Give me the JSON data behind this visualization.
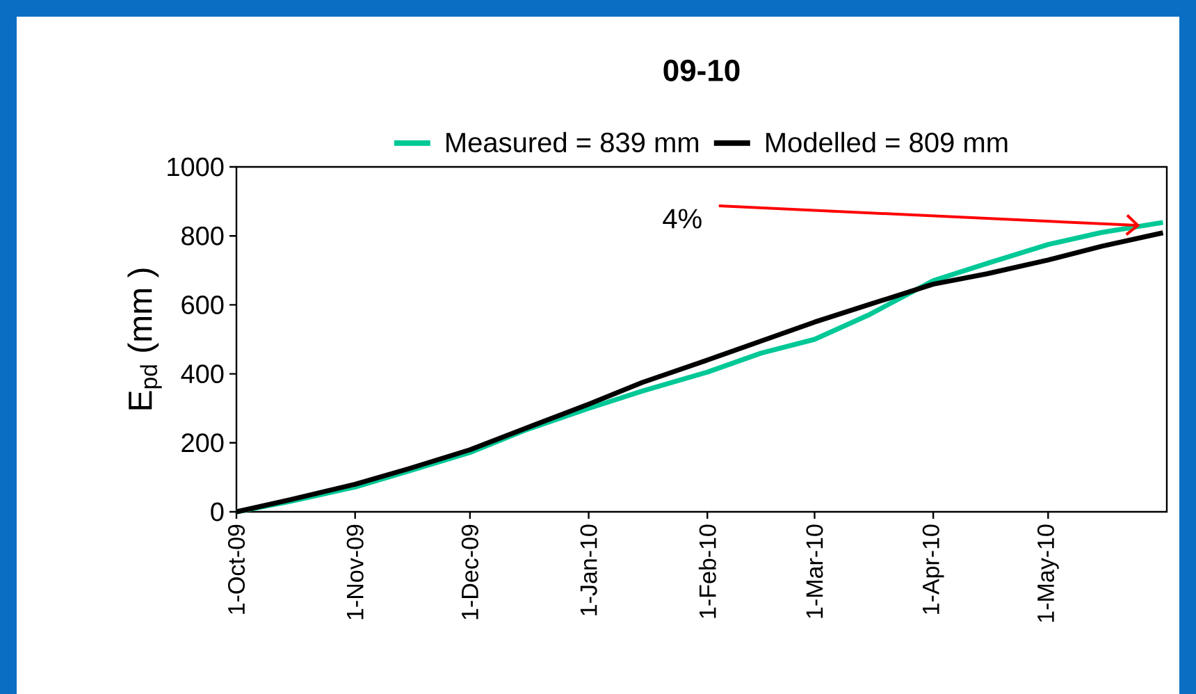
{
  "chart_data": {
    "type": "line",
    "title": "09-10",
    "ylabel": "E$_{pd}$ (mm )",
    "x": [
      "2009-10-01",
      "2009-10-15",
      "2009-11-01",
      "2009-11-15",
      "2009-12-01",
      "2009-12-15",
      "2010-01-01",
      "2010-01-15",
      "2010-02-01",
      "2010-02-15",
      "2010-03-01",
      "2010-03-15",
      "2010-04-01",
      "2010-04-15",
      "2010-05-01",
      "2010-05-15",
      "2010-05-31"
    ],
    "series": [
      {
        "name": "Measured = 839 mm",
        "color": "#00c896",
        "values": [
          0,
          30,
          72,
          118,
          172,
          235,
          300,
          350,
          405,
          460,
          500,
          570,
          670,
          720,
          775,
          810,
          839
        ]
      },
      {
        "name": "Modelled = 809 mm",
        "color": "#000000",
        "values": [
          0,
          35,
          80,
          125,
          180,
          240,
          312,
          375,
          440,
          495,
          550,
          600,
          660,
          690,
          730,
          770,
          809
        ]
      }
    ],
    "xlim": [
      "2009-10-01",
      "2010-06-01"
    ],
    "xticks": [
      {
        "value": "2009-10-01",
        "label": "1-Oct-09"
      },
      {
        "value": "2009-11-01",
        "label": "1-Nov-09"
      },
      {
        "value": "2009-12-01",
        "label": "1-Dec-09"
      },
      {
        "value": "2010-01-01",
        "label": "1-Jan-10"
      },
      {
        "value": "2010-02-01",
        "label": "1-Feb-10"
      },
      {
        "value": "2010-03-01",
        "label": "1-Mar-10"
      },
      {
        "value": "2010-04-01",
        "label": "1-Apr-10"
      },
      {
        "value": "2010-05-01",
        "label": "1-May-10"
      }
    ],
    "ylim": [
      0,
      1000
    ],
    "yticks": [
      0,
      200,
      400,
      600,
      800,
      1000
    ],
    "annotations": [
      {
        "text": "4%",
        "x": "2010-05-25",
        "y": 830
      }
    ],
    "legend": "top",
    "grid": false,
    "marker": "none",
    "line_style": "solid"
  }
}
